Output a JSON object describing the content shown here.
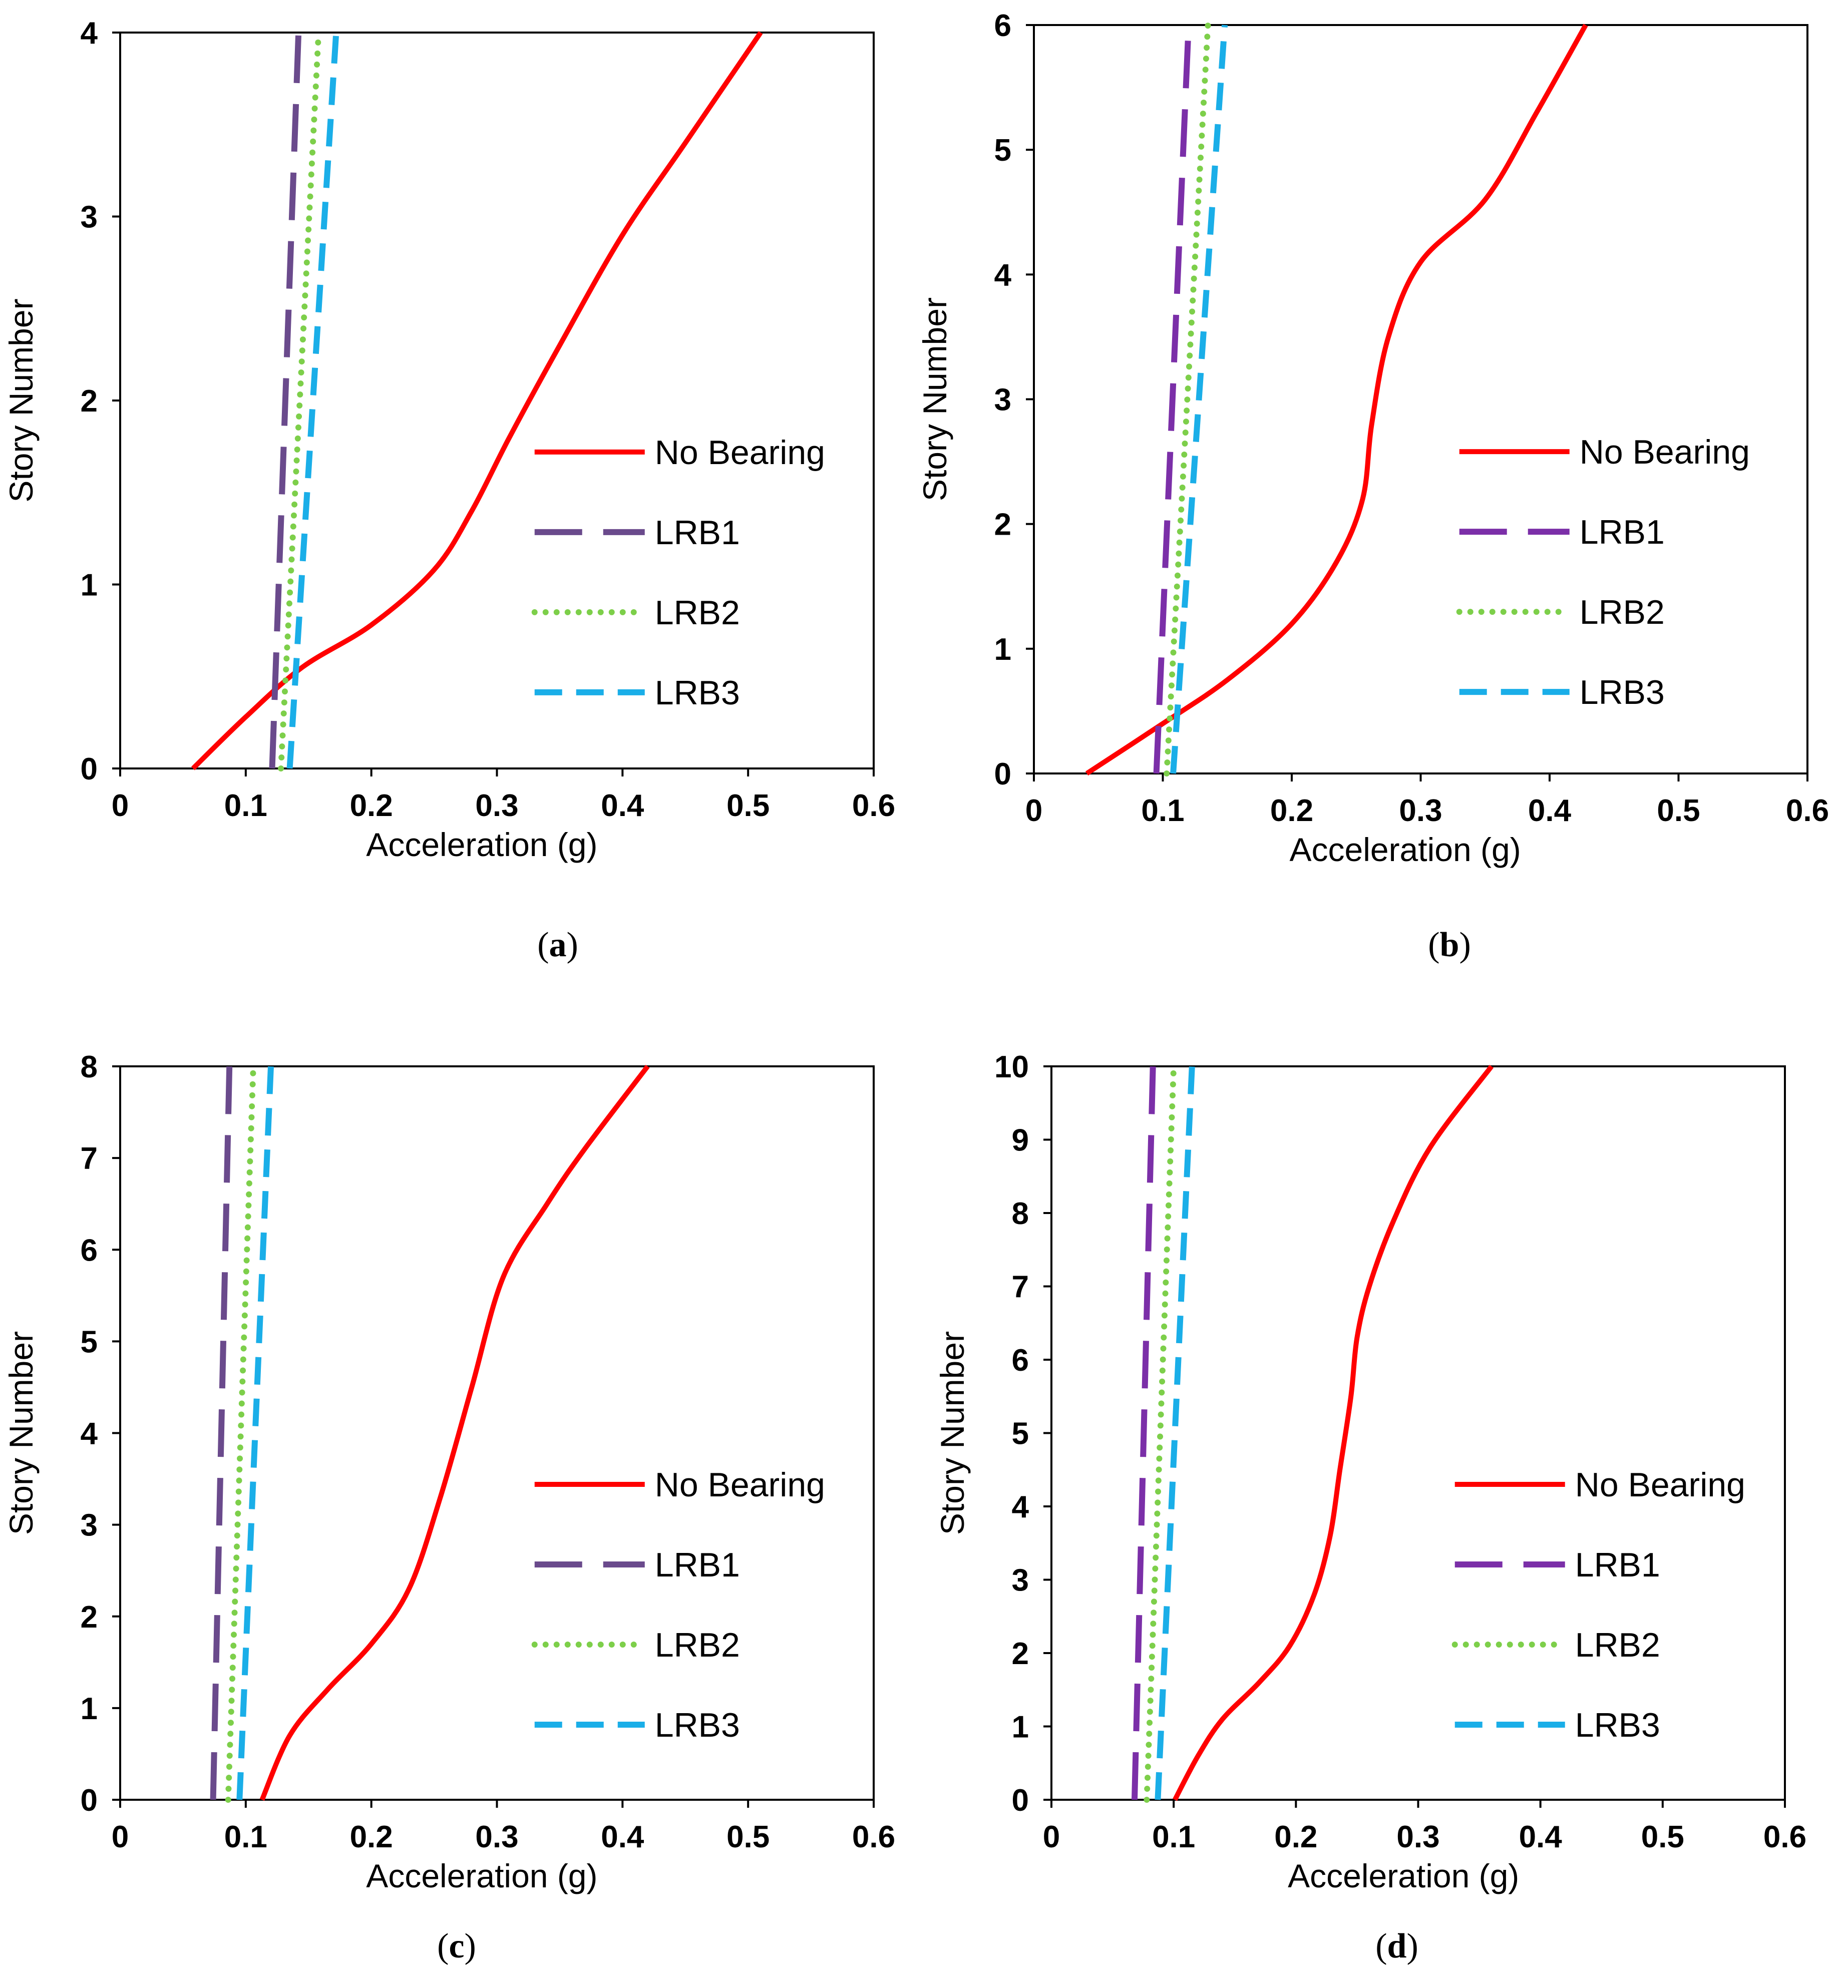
{
  "chart_data": [
    {
      "type": "line",
      "caption": "a",
      "xlabel": "Acceleration (g)",
      "ylabel": "Story Number",
      "xlim": [
        0,
        0.6
      ],
      "ylim": [
        0,
        4
      ],
      "xticks": [
        "0",
        "0.1",
        "0.2",
        "0.3",
        "0.4",
        "0.5",
        "0.6"
      ],
      "yticks": [
        "0",
        "1",
        "2",
        "3",
        "4"
      ],
      "legend_position": "right",
      "series": [
        {
          "name": "No Bearing",
          "color": "#ff0000",
          "style": "solid",
          "points": [
            [
              0.058,
              0
            ],
            [
              0.1,
              0.28
            ],
            [
              0.145,
              0.55
            ],
            [
              0.2,
              0.78
            ],
            [
              0.25,
              1.08
            ],
            [
              0.28,
              1.4
            ],
            [
              0.31,
              1.8
            ],
            [
              0.35,
              2.3
            ],
            [
              0.4,
              2.9
            ],
            [
              0.45,
              3.4
            ],
            [
              0.51,
              4.0
            ]
          ]
        },
        {
          "name": "LRB1",
          "color": "#6a4a8c",
          "style": "longdash",
          "points": [
            [
              0.121,
              0
            ],
            [
              0.142,
              4.0
            ]
          ]
        },
        {
          "name": "LRB2",
          "color": "#7dcf4a",
          "style": "dotted",
          "points": [
            [
              0.128,
              0
            ],
            [
              0.158,
              4.0
            ]
          ]
        },
        {
          "name": "LRB3",
          "color": "#1aaee8",
          "style": "dashed",
          "points": [
            [
              0.135,
              0
            ],
            [
              0.172,
              4.0
            ]
          ]
        }
      ]
    },
    {
      "type": "line",
      "caption": "b",
      "xlabel": "Acceleration (g)",
      "ylabel": "Story Number",
      "xlim": [
        0,
        0.6
      ],
      "ylim": [
        0,
        6
      ],
      "xticks": [
        "0",
        "0.1",
        "0.2",
        "0.3",
        "0.4",
        "0.5",
        "0.6"
      ],
      "yticks": [
        "0",
        "1",
        "2",
        "3",
        "4",
        "5",
        "6"
      ],
      "legend_position": "right",
      "series": [
        {
          "name": "No Bearing",
          "color": "#ff0000",
          "style": "solid",
          "points": [
            [
              0.041,
              0
            ],
            [
              0.1,
              0.4
            ],
            [
              0.15,
              0.75
            ],
            [
              0.2,
              1.2
            ],
            [
              0.235,
              1.7
            ],
            [
              0.255,
              2.2
            ],
            [
              0.262,
              2.8
            ],
            [
              0.275,
              3.5
            ],
            [
              0.3,
              4.1
            ],
            [
              0.35,
              4.6
            ],
            [
              0.39,
              5.3
            ],
            [
              0.428,
              6.0
            ]
          ]
        },
        {
          "name": "LRB1",
          "color": "#7b2fa8",
          "style": "longdash",
          "points": [
            [
              0.095,
              0
            ],
            [
              0.12,
              6.0
            ]
          ]
        },
        {
          "name": "LRB2",
          "color": "#7dcf4a",
          "style": "dotted",
          "points": [
            [
              0.103,
              0
            ],
            [
              0.135,
              6.0
            ]
          ]
        },
        {
          "name": "LRB3",
          "color": "#1aaee8",
          "style": "dashed",
          "points": [
            [
              0.108,
              0
            ],
            [
              0.148,
              6.0
            ]
          ]
        }
      ]
    },
    {
      "type": "line",
      "caption": "c",
      "xlabel": "Acceleration (g)",
      "ylabel": "Story Number",
      "xlim": [
        0,
        0.6
      ],
      "ylim": [
        0,
        8
      ],
      "xticks": [
        "0",
        "0.1",
        "0.2",
        "0.3",
        "0.4",
        "0.5",
        "0.6"
      ],
      "yticks": [
        "0",
        "1",
        "2",
        "3",
        "4",
        "5",
        "6",
        "7",
        "8"
      ],
      "legend_position": "right",
      "series": [
        {
          "name": "No Bearing",
          "color": "#ff0000",
          "style": "solid",
          "points": [
            [
              0.113,
              0
            ],
            [
              0.135,
              0.7
            ],
            [
              0.165,
              1.2
            ],
            [
              0.2,
              1.7
            ],
            [
              0.23,
              2.3
            ],
            [
              0.255,
              3.3
            ],
            [
              0.28,
              4.5
            ],
            [
              0.305,
              5.7
            ],
            [
              0.34,
              6.5
            ],
            [
              0.37,
              7.1
            ],
            [
              0.42,
              8.0
            ]
          ]
        },
        {
          "name": "LRB1",
          "color": "#6a4a8c",
          "style": "longdash",
          "points": [
            [
              0.074,
              0
            ],
            [
              0.087,
              8.0
            ]
          ]
        },
        {
          "name": "LRB2",
          "color": "#7dcf4a",
          "style": "dotted",
          "points": [
            [
              0.086,
              0
            ],
            [
              0.106,
              8.0
            ]
          ]
        },
        {
          "name": "LRB3",
          "color": "#1aaee8",
          "style": "dashed",
          "points": [
            [
              0.095,
              0
            ],
            [
              0.12,
              8.0
            ]
          ]
        }
      ]
    },
    {
      "type": "line",
      "caption": "d",
      "xlabel": "Acceleration (g)",
      "ylabel": "Story Number",
      "xlim": [
        0,
        0.6
      ],
      "ylim": [
        0,
        10
      ],
      "xticks": [
        "0",
        "0.1",
        "0.2",
        "0.3",
        "0.4",
        "0.5",
        "0.6"
      ],
      "yticks": [
        "0",
        "1",
        "2",
        "3",
        "4",
        "5",
        "6",
        "7",
        "8",
        "9",
        "10"
      ],
      "legend_position": "right",
      "series": [
        {
          "name": "No Bearing",
          "color": "#ff0000",
          "style": "solid",
          "points": [
            [
              0.101,
              0
            ],
            [
              0.12,
              0.6
            ],
            [
              0.14,
              1.1
            ],
            [
              0.17,
              1.6
            ],
            [
              0.195,
              2.1
            ],
            [
              0.215,
              2.8
            ],
            [
              0.228,
              3.6
            ],
            [
              0.236,
              4.5
            ],
            [
              0.245,
              5.5
            ],
            [
              0.25,
              6.3
            ],
            [
              0.26,
              7.0
            ],
            [
              0.28,
              7.9
            ],
            [
              0.31,
              8.9
            ],
            [
              0.36,
              10.0
            ]
          ]
        },
        {
          "name": "LRB1",
          "color": "#7b2fa8",
          "style": "longdash",
          "points": [
            [
              0.068,
              0
            ],
            [
              0.083,
              10.0
            ]
          ]
        },
        {
          "name": "LRB2",
          "color": "#7dcf4a",
          "style": "dotted",
          "points": [
            [
              0.078,
              0
            ],
            [
              0.1,
              10.0
            ]
          ]
        },
        {
          "name": "LRB3",
          "color": "#1aaee8",
          "style": "dashed",
          "points": [
            [
              0.087,
              0
            ],
            [
              0.115,
              10.0
            ]
          ]
        }
      ]
    }
  ]
}
